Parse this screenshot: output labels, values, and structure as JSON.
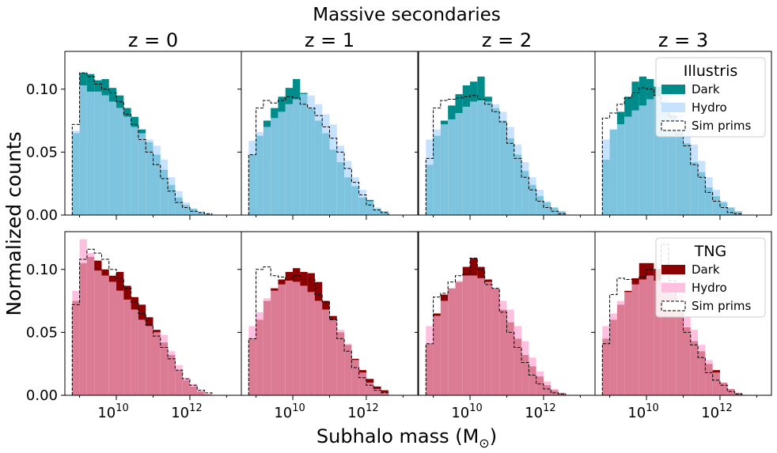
{
  "figure": {
    "suptitle": "Massive secondaries",
    "xlabel": "Subhalo mass (M",
    "xlabel_sub": "⊙",
    "xlabel_close": ")",
    "ylabel": "Normalized counts",
    "column_titles": [
      "z = 0",
      "z = 1",
      "z = 2",
      "z = 3"
    ],
    "ytick_labels": [
      "0.00",
      "0.05",
      "0.10"
    ],
    "xtick_base": "10",
    "xtick_exponents": [
      "10",
      "12"
    ]
  },
  "colors": {
    "illustris_dark": "#008b8b",
    "illustris_hydro": "#c6e2ff",
    "overlap_top": "#7fc4de",
    "tng_dark": "#8b0000",
    "tng_hydro": "#ffc0e0",
    "overlap_bottom": "#db7b94",
    "sim_prims_edge": "#000000"
  },
  "legends": [
    {
      "title": "Illustris",
      "entries": [
        "Dark",
        "Hydro",
        "Sim prims"
      ]
    },
    {
      "title": "TNG",
      "entries": [
        "Dark",
        "Hydro",
        "Sim prims"
      ]
    }
  ],
  "chart_data": {
    "type": "histogram",
    "grid": false,
    "xscale": "log",
    "bin_edges_log10_mass": [
      8.8,
      9.0,
      9.2,
      9.4,
      9.6,
      9.8,
      10.0,
      10.2,
      10.4,
      10.6,
      10.8,
      11.0,
      11.2,
      11.4,
      11.6,
      11.8,
      12.0,
      12.2,
      12.4,
      12.6,
      12.8,
      13.0
    ],
    "xlim_log10": [
      8.6,
      13.4
    ],
    "ylim": [
      0,
      0.13
    ],
    "yticks": [
      0.0,
      0.05,
      0.1
    ],
    "panels": [
      {
        "row": "Illustris",
        "title": "z = 0",
        "legend": false,
        "dark": [
          0.065,
          0.113,
          0.112,
          0.107,
          0.108,
          0.101,
          0.095,
          0.085,
          0.078,
          0.068,
          0.058,
          0.048,
          0.036,
          0.024,
          0.014,
          0.008,
          0.005,
          0.002,
          0.001,
          0.0,
          0.0
        ],
        "hydro": [
          0.067,
          0.103,
          0.098,
          0.098,
          0.095,
          0.09,
          0.085,
          0.078,
          0.07,
          0.065,
          0.06,
          0.055,
          0.044,
          0.03,
          0.019,
          0.01,
          0.005,
          0.003,
          0.001,
          0.0,
          0.0
        ],
        "prims": [
          0.072,
          0.113,
          0.11,
          0.104,
          0.1,
          0.097,
          0.09,
          0.08,
          0.072,
          0.06,
          0.05,
          0.04,
          0.029,
          0.019,
          0.01,
          0.006,
          0.003,
          0.002,
          0.001,
          0.0,
          0.0
        ]
      },
      {
        "row": "Illustris",
        "title": "z = 1",
        "legend": false,
        "dark": [
          0.048,
          0.063,
          0.075,
          0.085,
          0.094,
          0.101,
          0.108,
          0.097,
          0.085,
          0.075,
          0.065,
          0.052,
          0.042,
          0.03,
          0.023,
          0.014,
          0.012,
          0.005,
          0.003,
          0.0,
          0.0
        ],
        "hydro": [
          0.059,
          0.066,
          0.07,
          0.077,
          0.082,
          0.088,
          0.092,
          0.096,
          0.095,
          0.088,
          0.08,
          0.072,
          0.055,
          0.043,
          0.03,
          0.02,
          0.011,
          0.006,
          0.003,
          0.0,
          0.0
        ],
        "prims": [
          0.048,
          0.085,
          0.091,
          0.089,
          0.091,
          0.094,
          0.093,
          0.088,
          0.085,
          0.079,
          0.07,
          0.061,
          0.05,
          0.037,
          0.026,
          0.016,
          0.008,
          0.004,
          0.002,
          0.0,
          0.0
        ]
      },
      {
        "row": "Illustris",
        "title": "z = 2",
        "legend": false,
        "dark": [
          0.04,
          0.063,
          0.075,
          0.087,
          0.096,
          0.103,
          0.106,
          0.11,
          0.094,
          0.085,
          0.075,
          0.061,
          0.048,
          0.035,
          0.024,
          0.015,
          0.01,
          0.006,
          0.003,
          0.0,
          0.0
        ],
        "hydro": [
          0.06,
          0.068,
          0.072,
          0.076,
          0.081,
          0.086,
          0.09,
          0.091,
          0.09,
          0.088,
          0.082,
          0.07,
          0.056,
          0.042,
          0.03,
          0.02,
          0.011,
          0.006,
          0.003,
          0.0,
          0.0
        ],
        "prims": [
          0.045,
          0.085,
          0.091,
          0.092,
          0.093,
          0.094,
          0.095,
          0.092,
          0.088,
          0.082,
          0.074,
          0.057,
          0.045,
          0.03,
          0.02,
          0.011,
          0.006,
          0.003,
          0.001,
          0.0,
          0.0
        ]
      },
      {
        "row": "Illustris",
        "title": "z = 3",
        "legend": true,
        "dark": [
          0.044,
          0.068,
          0.082,
          0.094,
          0.106,
          0.11,
          0.108,
          0.102,
          0.09,
          0.08,
          0.068,
          0.057,
          0.042,
          0.034,
          0.022,
          0.015,
          0.01,
          0.006,
          0.003,
          0.0,
          0.0
        ],
        "hydro": [
          0.06,
          0.068,
          0.072,
          0.078,
          0.083,
          0.087,
          0.092,
          0.095,
          0.096,
          0.09,
          0.08,
          0.068,
          0.056,
          0.043,
          0.03,
          0.02,
          0.011,
          0.006,
          0.003,
          0.0,
          0.0
        ],
        "prims": [
          0.077,
          0.081,
          0.088,
          0.093,
          0.097,
          0.101,
          0.1,
          0.095,
          0.088,
          0.078,
          0.064,
          0.055,
          0.04,
          0.03,
          0.018,
          0.011,
          0.006,
          0.002,
          0.001,
          0.0,
          0.0
        ]
      },
      {
        "row": "TNG",
        "title": "z = 0",
        "legend": false,
        "dark": [
          0.075,
          0.105,
          0.11,
          0.107,
          0.1,
          0.095,
          0.098,
          0.087,
          0.078,
          0.072,
          0.062,
          0.052,
          0.042,
          0.032,
          0.02,
          0.012,
          0.007,
          0.003,
          0.001,
          0.0,
          0.0
        ],
        "hydro": [
          0.083,
          0.124,
          0.113,
          0.099,
          0.095,
          0.09,
          0.083,
          0.076,
          0.068,
          0.06,
          0.055,
          0.05,
          0.048,
          0.035,
          0.024,
          0.014,
          0.009,
          0.004,
          0.001,
          0.0,
          0.0
        ],
        "prims": [
          0.072,
          0.108,
          0.116,
          0.113,
          0.108,
          0.1,
          0.093,
          0.085,
          0.074,
          0.065,
          0.056,
          0.047,
          0.038,
          0.029,
          0.02,
          0.013,
          0.008,
          0.004,
          0.002,
          0.0,
          0.0
        ]
      },
      {
        "row": "TNG",
        "title": "z = 1",
        "legend": false,
        "dark": [
          0.045,
          0.06,
          0.075,
          0.085,
          0.092,
          0.098,
          0.101,
          0.098,
          0.097,
          0.09,
          0.075,
          0.063,
          0.05,
          0.04,
          0.029,
          0.02,
          0.013,
          0.007,
          0.004,
          0.0,
          0.0
        ],
        "hydro": [
          0.055,
          0.066,
          0.077,
          0.083,
          0.088,
          0.091,
          0.09,
          0.087,
          0.082,
          0.075,
          0.068,
          0.06,
          0.052,
          0.041,
          0.028,
          0.018,
          0.01,
          0.005,
          0.002,
          0.0,
          0.0
        ],
        "prims": [
          0.045,
          0.1,
          0.102,
          0.095,
          0.094,
          0.092,
          0.095,
          0.092,
          0.092,
          0.08,
          0.074,
          0.06,
          0.045,
          0.035,
          0.022,
          0.014,
          0.008,
          0.004,
          0.002,
          0.0,
          0.0
        ]
      },
      {
        "row": "TNG",
        "title": "z = 2",
        "legend": false,
        "dark": [
          0.041,
          0.065,
          0.08,
          0.085,
          0.09,
          0.102,
          0.109,
          0.102,
          0.092,
          0.085,
          0.068,
          0.058,
          0.045,
          0.032,
          0.023,
          0.015,
          0.008,
          0.004,
          0.002,
          0.0,
          0.0
        ],
        "hydro": [
          0.055,
          0.063,
          0.075,
          0.085,
          0.091,
          0.095,
          0.095,
          0.093,
          0.09,
          0.085,
          0.075,
          0.068,
          0.055,
          0.043,
          0.03,
          0.019,
          0.011,
          0.005,
          0.002,
          0.0,
          0.0
        ],
        "prims": [
          0.041,
          0.078,
          0.081,
          0.09,
          0.095,
          0.096,
          0.109,
          0.1,
          0.088,
          0.085,
          0.066,
          0.05,
          0.038,
          0.026,
          0.016,
          0.009,
          0.005,
          0.002,
          0.001,
          0.0,
          0.0
        ]
      },
      {
        "row": "TNG",
        "title": "z = 3",
        "legend": true,
        "dark": [
          0.045,
          0.06,
          0.072,
          0.083,
          0.093,
          0.105,
          0.105,
          0.1,
          0.09,
          0.081,
          0.07,
          0.054,
          0.043,
          0.035,
          0.025,
          0.02,
          0.01,
          0.005,
          0.002,
          0.0,
          0.0
        ],
        "hydro": [
          0.055,
          0.065,
          0.075,
          0.082,
          0.088,
          0.092,
          0.095,
          0.091,
          0.09,
          0.086,
          0.08,
          0.063,
          0.052,
          0.04,
          0.028,
          0.018,
          0.01,
          0.005,
          0.002,
          0.0,
          0.0
        ],
        "prims": [
          0.041,
          0.08,
          0.093,
          0.092,
          0.092,
          0.094,
          0.1,
          0.1,
          0.12,
          0.091,
          0.07,
          0.05,
          0.04,
          0.03,
          0.018,
          0.012,
          0.008,
          0.003,
          0.001,
          0.0,
          0.0
        ]
      }
    ]
  }
}
